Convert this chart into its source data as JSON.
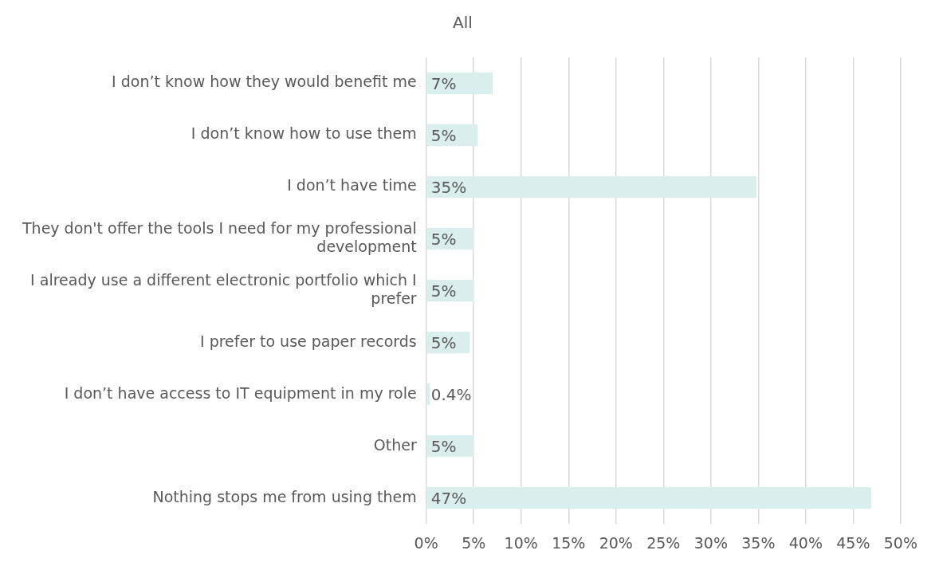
{
  "chart_data": {
    "type": "bar",
    "orientation": "horizontal",
    "title": "All",
    "categories": [
      "I don’t know how they would benefit me",
      "I don’t know how to use them",
      "I don’t have time",
      "They don't offer the tools I need for my professional development",
      "I already use a different electronic portfolio which I prefer",
      "I prefer to use paper records",
      "I don’t have access to IT equipment in my role",
      "Other",
      "Nothing stops me from using them"
    ],
    "values": [
      7.0,
      5.4,
      34.8,
      5.0,
      5.0,
      4.6,
      0.4,
      5.0,
      46.9
    ],
    "value_labels": [
      "7%",
      "5%",
      "35%",
      "5%",
      "5%",
      "5%",
      "0.4%",
      "5%",
      "47%"
    ],
    "color": "#dbeeee",
    "xlim": [
      0,
      50
    ],
    "xticks": [
      {
        "value": 0,
        "label": "0%"
      },
      {
        "value": 5,
        "label": "5%"
      },
      {
        "value": 10,
        "label": "10%"
      },
      {
        "value": 15,
        "label": "15%"
      },
      {
        "value": 20,
        "label": "20%"
      },
      {
        "value": 25,
        "label": "25%"
      },
      {
        "value": 30,
        "label": "30%"
      },
      {
        "value": 35,
        "label": "35%"
      },
      {
        "value": 40,
        "label": "40%"
      },
      {
        "value": 45,
        "label": "45%"
      },
      {
        "value": 50,
        "label": "50%"
      }
    ],
    "grid": "x",
    "legend": false
  }
}
